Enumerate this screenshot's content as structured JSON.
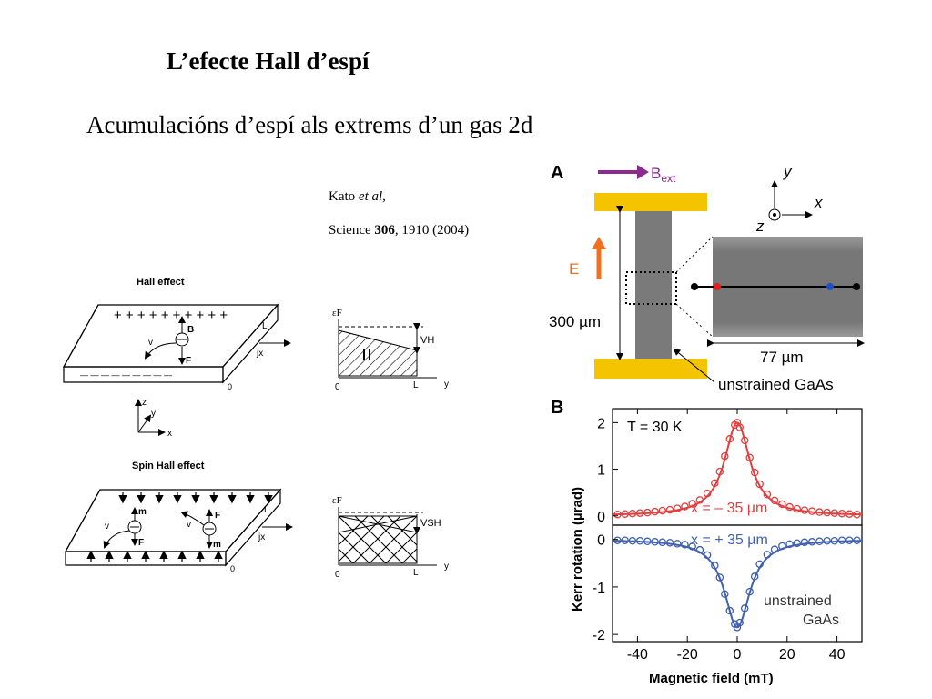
{
  "slide": {
    "title": "L’efecte Hall d’espí",
    "subtitle": "Acumulacións d’espí als extrems d’un gas 2d"
  },
  "citation": {
    "authors_a": "Kato ",
    "authors_b": "et al",
    "authors_c": ",",
    "journal": "Science ",
    "volume": "306",
    "pages": ", 1910 (2004)",
    "trail": " "
  },
  "hall": {
    "title": "Hall effect",
    "plus": "+ + + + + + + + + +",
    "minus": "— — — — — — — — —",
    "label_B": "B",
    "label_v": "v",
    "label_F": "F",
    "label_L": "L",
    "label_jx": "jx",
    "label_0": "0",
    "axis_z": "z",
    "axis_y": "y",
    "axis_x": "x"
  },
  "hall_plot": {
    "eF": "εF",
    "VH": "VH",
    "zero": "0",
    "L": "L",
    "y": "y"
  },
  "spinhall": {
    "title": "Spin Hall effect",
    "label_v1": "v",
    "label_m1": "m",
    "label_F1": "F",
    "label_v2": "v",
    "label_F2": "F",
    "label_m2": "m",
    "label_L": "L",
    "label_jx": "jx",
    "label_0": "0"
  },
  "spinhall_plot": {
    "eF": "εF",
    "VSH": "VSH",
    "zero": "0",
    "L": "L",
    "y": "y"
  },
  "figA": {
    "panel": "A",
    "bext": "B",
    "bext_sub": "ext",
    "E": "E",
    "length": "300 µm",
    "width": "77 µm",
    "material": "unstrained GaAs",
    "axis_y": "y",
    "axis_x": "x",
    "axis_z": "z",
    "colors": {
      "bext_arrow": "#8b2a8f",
      "contact": "#f5c400",
      "E_arrow": "#f07020",
      "channel": "#7a7a7a",
      "red_dot": "#e02020",
      "blue_dot": "#2050c0"
    }
  },
  "chart_data": {
    "type": "scatter",
    "panel": "B",
    "xlabel": "Magnetic field (mT)",
    "ylabel": "Kerr rotation (µrad)",
    "xlim": [
      -50,
      50
    ],
    "x_ticks": [
      "-40",
      "-20",
      "0",
      "20",
      "40"
    ],
    "annotation_T": "T = 30 K",
    "annotation_material": [
      "unstrained",
      "GaAs"
    ],
    "top": {
      "ylim": [
        -0.2,
        2.3
      ],
      "y_ticks": [
        "2",
        "1",
        "0"
      ],
      "series": [
        {
          "name": "x = – 35 µm",
          "color": "#e04040",
          "x": [
            -48,
            -45,
            -42,
            -39,
            -36,
            -33,
            -30,
            -27,
            -24,
            -21,
            -18,
            -15,
            -12,
            -9,
            -7,
            -5,
            -3,
            -1,
            0,
            1,
            3,
            5,
            7,
            9,
            12,
            15,
            18,
            21,
            24,
            27,
            30,
            33,
            36,
            39,
            42,
            45,
            48
          ],
          "y": [
            0.03,
            0.04,
            0.05,
            0.06,
            0.07,
            0.09,
            0.11,
            0.13,
            0.16,
            0.2,
            0.26,
            0.34,
            0.48,
            0.7,
            0.95,
            1.28,
            1.65,
            1.95,
            2.0,
            1.9,
            1.62,
            1.25,
            0.93,
            0.68,
            0.46,
            0.33,
            0.25,
            0.19,
            0.15,
            0.12,
            0.1,
            0.08,
            0.07,
            0.06,
            0.05,
            0.04,
            0.03
          ]
        }
      ]
    },
    "bottom": {
      "ylim": [
        -2.15,
        0.3
      ],
      "y_ticks": [
        "0",
        "-1",
        "-2"
      ],
      "series": [
        {
          "name": "x = + 35 µm",
          "color": "#4060b0",
          "x": [
            -48,
            -45,
            -42,
            -39,
            -36,
            -33,
            -30,
            -27,
            -24,
            -21,
            -18,
            -15,
            -12,
            -9,
            -7,
            -5,
            -3,
            -1,
            0,
            1,
            3,
            5,
            7,
            9,
            12,
            15,
            18,
            21,
            24,
            27,
            30,
            33,
            36,
            39,
            42,
            45,
            48
          ],
          "y": [
            -0.02,
            -0.02,
            -0.03,
            -0.03,
            -0.04,
            -0.05,
            -0.06,
            -0.07,
            -0.09,
            -0.11,
            -0.15,
            -0.22,
            -0.33,
            -0.55,
            -0.8,
            -1.15,
            -1.5,
            -1.78,
            -1.85,
            -1.75,
            -1.45,
            -1.1,
            -0.78,
            -0.52,
            -0.32,
            -0.21,
            -0.14,
            -0.1,
            -0.08,
            -0.06,
            -0.05,
            -0.04,
            -0.03,
            -0.03,
            -0.02,
            -0.02,
            -0.02
          ]
        }
      ]
    }
  }
}
